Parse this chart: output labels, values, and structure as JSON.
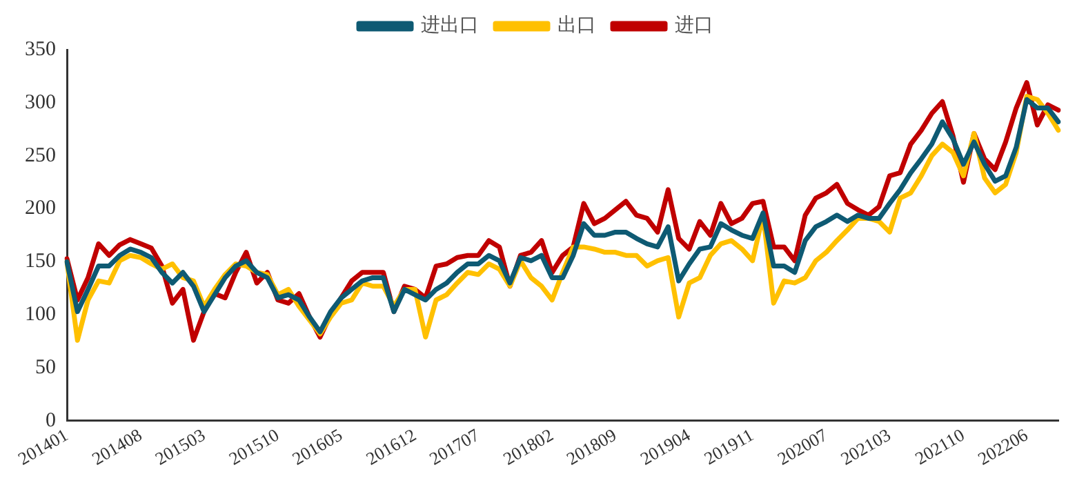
{
  "chart_data": {
    "type": "line",
    "categories": [
      "201401",
      null,
      null,
      null,
      null,
      null,
      null,
      "201408",
      null,
      null,
      null,
      null,
      null,
      "201503",
      null,
      null,
      null,
      null,
      null,
      null,
      "201510",
      null,
      null,
      null,
      null,
      null,
      "201605",
      null,
      null,
      null,
      null,
      null,
      null,
      "201612",
      null,
      null,
      null,
      null,
      null,
      "201707",
      null,
      null,
      null,
      null,
      null,
      null,
      "201802",
      null,
      null,
      null,
      null,
      null,
      "201809",
      null,
      null,
      null,
      null,
      null,
      null,
      "201904",
      null,
      null,
      null,
      null,
      null,
      "201911",
      null,
      null,
      null,
      null,
      null,
      null,
      "202007",
      null,
      null,
      null,
      null,
      null,
      "202103",
      null,
      null,
      null,
      null,
      null,
      null,
      "202110",
      null,
      null,
      null,
      null,
      null,
      "202206",
      null,
      null,
      null
    ],
    "series": [
      {
        "name": "进出口",
        "color": "#0e5a73",
        "values": [
          150,
          103,
          124,
          146,
          146,
          156,
          162,
          159,
          154,
          140,
          130,
          140,
          127,
          103,
          119,
          135,
          146,
          151,
          140,
          135,
          116,
          119,
          114,
          98,
          84,
          103,
          116,
          124,
          132,
          135,
          135,
          103,
          124,
          119,
          114,
          124,
          130,
          140,
          148,
          148,
          156,
          151,
          130,
          154,
          151,
          156,
          135,
          135,
          156,
          186,
          175,
          175,
          178,
          178,
          172,
          167,
          164,
          183,
          132,
          148,
          162,
          164,
          186,
          180,
          175,
          172,
          196,
          146,
          146,
          140,
          170,
          183,
          188,
          194,
          188,
          194,
          191,
          191,
          205,
          218,
          234,
          247,
          261,
          282,
          266,
          242,
          263,
          242,
          226,
          231,
          258,
          303,
          295,
          295,
          282
        ]
      },
      {
        "name": "出口",
        "color": "#ffc000",
        "values": [
          150,
          76,
          114,
          132,
          130,
          151,
          156,
          154,
          148,
          143,
          148,
          135,
          132,
          108,
          124,
          138,
          148,
          146,
          140,
          138,
          119,
          124,
          108,
          95,
          82,
          98,
          111,
          114,
          130,
          127,
          127,
          108,
          124,
          124,
          79,
          114,
          119,
          130,
          140,
          138,
          148,
          143,
          127,
          151,
          135,
          127,
          114,
          140,
          164,
          164,
          162,
          159,
          159,
          156,
          156,
          146,
          151,
          154,
          98,
          130,
          135,
          156,
          167,
          170,
          162,
          151,
          194,
          111,
          132,
          130,
          135,
          151,
          159,
          170,
          180,
          191,
          191,
          188,
          178,
          210,
          215,
          231,
          250,
          261,
          253,
          231,
          271,
          229,
          215,
          223,
          253,
          306,
          303,
          290,
          274
        ]
      },
      {
        "name": "进口",
        "color": "#c00000",
        "values": [
          153,
          114,
          135,
          167,
          156,
          166,
          171,
          167,
          163,
          146,
          111,
          124,
          76,
          103,
          120,
          116,
          140,
          159,
          130,
          140,
          114,
          111,
          120,
          98,
          79,
          100,
          116,
          132,
          140,
          140,
          140,
          103,
          127,
          124,
          116,
          146,
          148,
          154,
          156,
          156,
          170,
          164,
          127,
          156,
          159,
          170,
          140,
          156,
          164,
          205,
          186,
          191,
          199,
          207,
          194,
          191,
          178,
          218,
          172,
          162,
          188,
          175,
          205,
          186,
          191,
          205,
          207,
          164,
          164,
          151,
          194,
          210,
          215,
          223,
          205,
          199,
          194,
          202,
          231,
          234,
          261,
          274,
          290,
          301,
          269,
          225,
          271,
          247,
          237,
          263,
          295,
          319,
          279,
          298,
          293
        ]
      }
    ],
    "ylim": [
      0,
      350
    ],
    "yticks": [
      0,
      50,
      100,
      150,
      200,
      250,
      300,
      350
    ],
    "grid": false,
    "legend": "top",
    "marker": "none",
    "line_style": "solid"
  }
}
